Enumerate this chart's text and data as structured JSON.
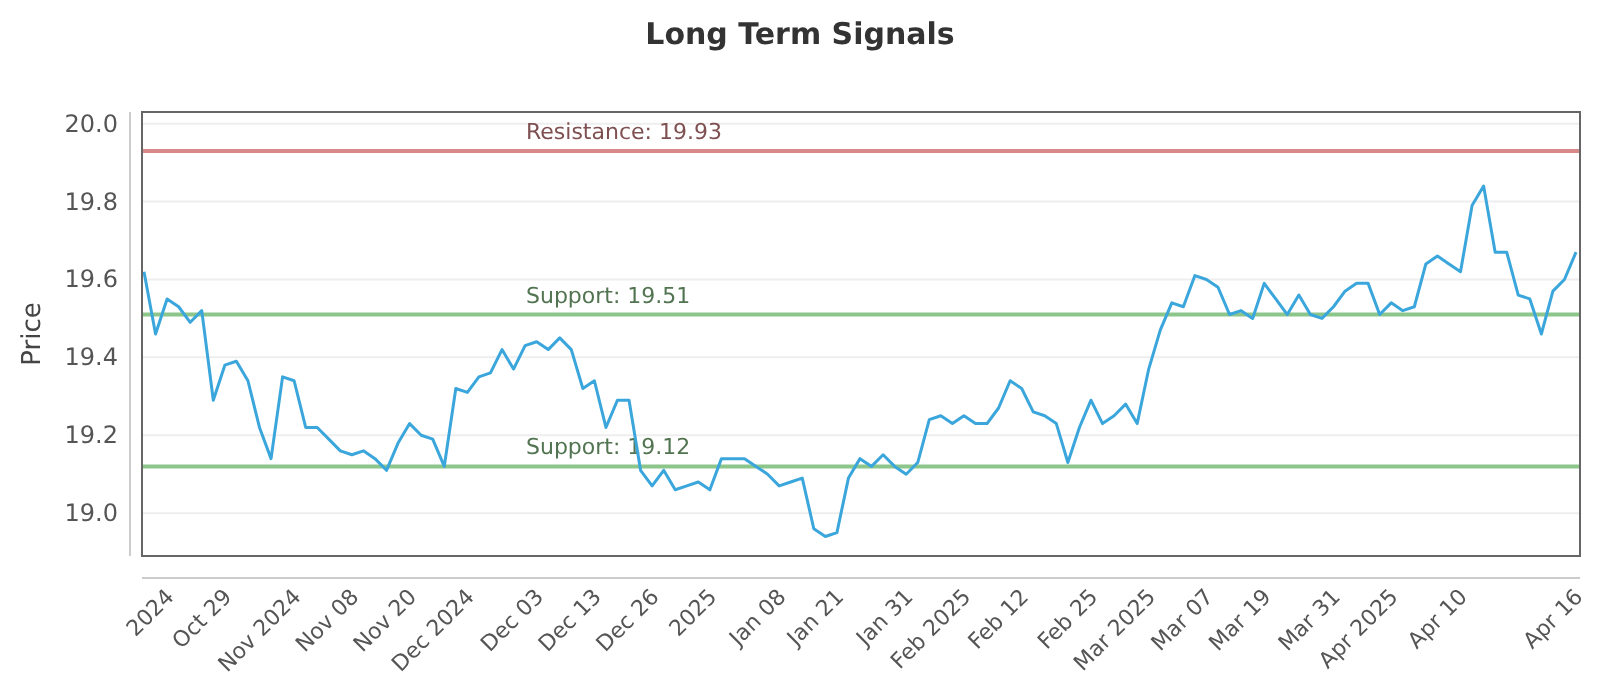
{
  "chart_data": {
    "type": "line",
    "title": "Long Term Signals",
    "ylabel": "Price",
    "categories": [
      null,
      null,
      "2024",
      null,
      null,
      null,
      null,
      "Oct 29",
      null,
      null,
      null,
      null,
      null,
      "Nov 2024",
      null,
      null,
      null,
      null,
      "Nov 08",
      null,
      null,
      null,
      null,
      "Nov 20",
      null,
      null,
      null,
      null,
      "Dec 2024",
      null,
      null,
      null,
      null,
      null,
      "Dec 03",
      null,
      null,
      null,
      null,
      "Dec 13",
      null,
      null,
      null,
      null,
      "Dec 26",
      null,
      null,
      null,
      null,
      "2025",
      null,
      null,
      null,
      null,
      null,
      "Jan 08",
      null,
      null,
      null,
      null,
      "Jan 21",
      null,
      null,
      null,
      null,
      null,
      "Jan 31",
      null,
      null,
      null,
      null,
      "Feb 2025",
      null,
      null,
      null,
      null,
      "Feb 12",
      null,
      null,
      null,
      null,
      null,
      "Feb 25",
      null,
      null,
      null,
      null,
      "Mar 2025",
      null,
      null,
      null,
      null,
      "Mar 07",
      null,
      null,
      null,
      null,
      "Mar 19",
      null,
      null,
      null,
      null,
      null,
      "Mar 31",
      null,
      null,
      null,
      null,
      "Apr 2025",
      null,
      null,
      null,
      null,
      null,
      "Apr 10",
      null,
      null,
      null,
      null,
      null,
      null,
      null,
      null,
      null,
      "Apr 16"
    ],
    "series": [
      {
        "color": "#3aa6dc",
        "values": [
          19.62,
          19.46,
          19.55,
          19.53,
          19.49,
          19.52,
          19.29,
          19.38,
          19.39,
          19.34,
          19.22,
          19.14,
          19.35,
          19.34,
          19.22,
          19.22,
          19.19,
          19.16,
          19.15,
          19.16,
          19.14,
          19.11,
          19.18,
          19.23,
          19.2,
          19.19,
          19.12,
          19.32,
          19.31,
          19.35,
          19.36,
          19.42,
          19.37,
          19.43,
          19.44,
          19.42,
          19.45,
          19.42,
          19.32,
          19.34,
          19.22,
          19.29,
          19.29,
          19.11,
          19.07,
          19.11,
          19.06,
          19.07,
          19.08,
          19.06,
          19.14,
          19.14,
          19.14,
          19.12,
          19.1,
          19.07,
          19.08,
          19.09,
          18.96,
          18.94,
          18.95,
          19.09,
          19.14,
          19.12,
          19.15,
          19.12,
          19.1,
          19.13,
          19.24,
          19.25,
          19.23,
          19.25,
          19.23,
          19.23,
          19.27,
          19.34,
          19.32,
          19.26,
          19.25,
          19.23,
          19.13,
          19.22,
          19.29,
          19.23,
          19.25,
          19.28,
          19.23,
          19.37,
          19.47,
          19.54,
          19.53,
          19.61,
          19.6,
          19.58,
          19.51,
          19.52,
          19.5,
          19.59,
          19.55,
          19.51,
          19.56,
          19.51,
          19.5,
          19.53,
          19.57,
          19.59,
          19.59,
          19.51,
          19.54,
          19.52,
          19.53,
          19.64,
          19.66,
          19.64,
          19.62,
          19.79,
          19.84,
          19.67,
          19.67,
          19.56,
          19.55,
          19.46,
          19.57,
          19.6,
          19.67
        ]
      }
    ],
    "ylim": [
      18.89,
      20.03
    ],
    "yticks": [
      {
        "value": 19.0,
        "label": "19.0"
      },
      19.2,
      19.4,
      19.6,
      19.8,
      {
        "value": 20.0,
        "label": "20.0"
      }
    ],
    "grid": "y",
    "marker": "none",
    "line_style": "solid",
    "ref_lines": [
      {
        "axis": "y",
        "value": 19.93,
        "label": "Resistance: 19.93",
        "color": "#d9898a"
      },
      {
        "axis": "y",
        "value": 19.51,
        "label": "Support: 19.51",
        "color": "#8cc68a"
      },
      {
        "axis": "y",
        "value": 19.12,
        "label": "Support: 19.12",
        "color": "#8cc68a"
      }
    ]
  }
}
